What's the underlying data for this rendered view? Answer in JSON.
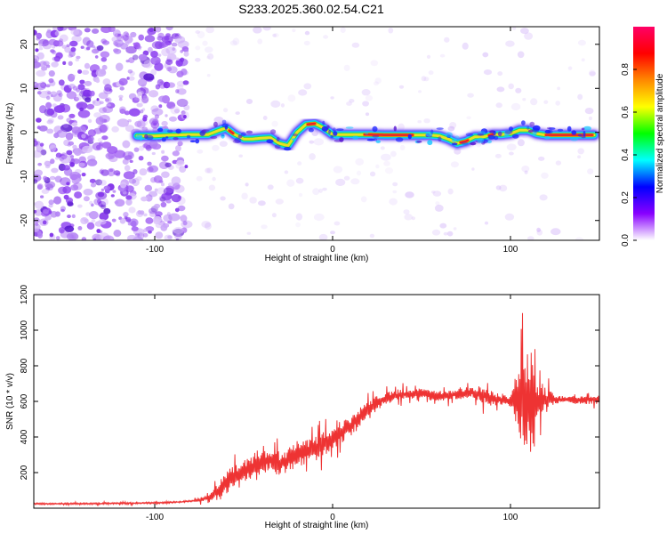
{
  "figure": {
    "title": "S233.2025.360.02.54.C21"
  },
  "colors": {
    "snr_line": "#ee3333",
    "ridge_core": "#e8202a",
    "scatter": "#8a3cf0",
    "frame": "#000000"
  },
  "chart_data": [
    {
      "type": "heatmap",
      "name": "spectrogram",
      "xlabel": "Height of straight line (km)",
      "ylabel": "Frequency (Hz)",
      "xlim": [
        -168,
        150
      ],
      "ylim": [
        -24.5,
        24
      ],
      "xticks": [
        -100,
        0,
        100
      ],
      "xtick_labels": [
        "-100",
        "0",
        "100"
      ],
      "yticks": [
        -20,
        -10,
        0,
        10,
        20
      ],
      "ytick_labels": [
        "-20",
        "-10",
        "0",
        "10",
        "20"
      ],
      "ridge": {
        "description": "dominant frequency trace",
        "x": [
          -110,
          -100,
          -90,
          -80,
          -70,
          -65,
          -60,
          -55,
          -50,
          -45,
          -40,
          -35,
          -30,
          -25,
          -20,
          -15,
          -10,
          -5,
          0,
          5,
          10,
          20,
          30,
          40,
          50,
          55,
          60,
          65,
          70,
          75,
          80,
          85,
          90,
          95,
          100,
          105,
          110,
          115,
          120,
          130,
          140,
          147
        ],
        "freq": [
          -0.8,
          -0.8,
          -0.6,
          -0.5,
          -0.5,
          0.3,
          1.0,
          -0.5,
          -1.5,
          -1.5,
          -1.3,
          -1.2,
          -2.5,
          -3.0,
          0.0,
          1.8,
          2.0,
          1.0,
          -0.5,
          -0.5,
          -0.5,
          -0.5,
          -0.6,
          -0.6,
          -0.6,
          -0.6,
          -0.8,
          -1.5,
          -2.5,
          -2.0,
          -1.0,
          -1.0,
          -0.5,
          -0.5,
          -0.3,
          0.5,
          0.5,
          -0.3,
          -0.6,
          -0.6,
          -0.6,
          -0.6
        ]
      },
      "colorbar": {
        "label": "Normalized spectral amplitude",
        "range": [
          0,
          1
        ],
        "ticks": [
          0.0,
          0.2,
          0.4,
          0.6,
          0.8
        ],
        "tick_labels": [
          "0.0",
          "0.2",
          "0.4",
          "0.6",
          "0.8"
        ],
        "colormap": [
          "#ffffff",
          "#8800ff",
          "#0000ff",
          "#00ffff",
          "#00ff00",
          "#ffff00",
          "#ff8800",
          "#ff0000",
          "#ff0066"
        ]
      }
    },
    {
      "type": "line",
      "name": "snr",
      "xlabel": "Height of straight line (km)",
      "ylabel": "SNR (10 * v/v)",
      "xlim": [
        -168,
        150
      ],
      "ylim": [
        0,
        1200
      ],
      "xticks": [
        -100,
        0,
        100
      ],
      "xtick_labels": [
        "-100",
        "0",
        "100"
      ],
      "yticks": [
        200,
        400,
        600,
        800,
        1000,
        1200
      ],
      "ytick_labels": [
        "200",
        "400",
        "600",
        "800",
        "1000",
        "1200"
      ],
      "trend": {
        "x": [
          -168,
          -140,
          -100,
          -85,
          -75,
          -70,
          -65,
          -60,
          -55,
          -50,
          -45,
          -40,
          -35,
          -30,
          -25,
          -20,
          -15,
          -10,
          -5,
          0,
          5,
          10,
          15,
          20,
          25,
          30,
          40,
          50,
          60,
          70,
          80,
          90,
          95,
          100,
          105,
          110,
          115,
          120,
          130,
          140,
          150
        ],
        "y": [
          25,
          25,
          30,
          35,
          45,
          60,
          90,
          140,
          180,
          210,
          230,
          260,
          270,
          250,
          270,
          300,
          320,
          330,
          360,
          380,
          420,
          460,
          510,
          560,
          590,
          620,
          640,
          640,
          630,
          640,
          650,
          620,
          610,
          600,
          600,
          600,
          600,
          610,
          610,
          610,
          610
        ]
      },
      "noise_amplitude": {
        "x": [
          -168,
          -80,
          -70,
          -60,
          -40,
          -20,
          0,
          20,
          40,
          60,
          80,
          84,
          90,
          100,
          104,
          107,
          110,
          113,
          116,
          125,
          150
        ],
        "amp": [
          8,
          8,
          30,
          100,
          110,
          120,
          110,
          80,
          50,
          50,
          50,
          100,
          55,
          45,
          250,
          420,
          600,
          350,
          200,
          40,
          40
        ]
      }
    }
  ]
}
